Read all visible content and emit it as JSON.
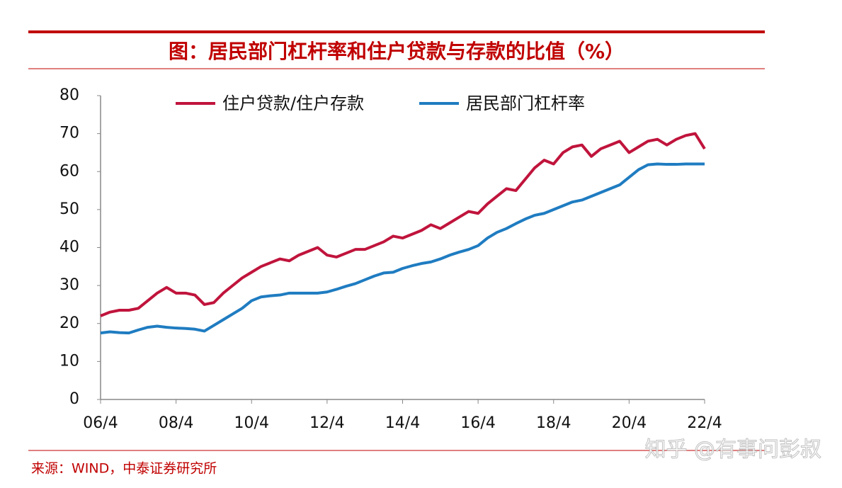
{
  "chart_data": {
    "type": "line",
    "title": "图：居民部门杠杆率和住户贷款与存款的比值（%）",
    "source": "来源：WIND，中泰证券研究所",
    "x": [
      2006.25,
      2006.5,
      2006.75,
      2007,
      2007.25,
      2007.5,
      2007.75,
      2008,
      2008.25,
      2008.5,
      2008.75,
      2009,
      2009.25,
      2009.5,
      2009.75,
      2010,
      2010.25,
      2010.5,
      2010.75,
      2011,
      2011.25,
      2011.5,
      2011.75,
      2012,
      2012.25,
      2012.5,
      2012.75,
      2013,
      2013.25,
      2013.5,
      2013.75,
      2014,
      2014.25,
      2014.5,
      2014.75,
      2015,
      2015.25,
      2015.5,
      2015.75,
      2016,
      2016.25,
      2016.5,
      2016.75,
      2017,
      2017.25,
      2017.5,
      2017.75,
      2018,
      2018.25,
      2018.5,
      2018.75,
      2019,
      2019.25,
      2019.5,
      2019.75,
      2020,
      2020.25,
      2020.5,
      2020.75,
      2021,
      2021.25,
      2021.5,
      2021.75,
      2022,
      2022.25
    ],
    "series": [
      {
        "name": "住户贷款/住户存款",
        "color": "#c0143c",
        "values": [
          22,
          23,
          23.5,
          23.5,
          24,
          26,
          28,
          29.5,
          28,
          28,
          27.5,
          25,
          25.5,
          28,
          30,
          32,
          33.5,
          35,
          36,
          37,
          36.5,
          38,
          39,
          40,
          38,
          37.5,
          38.5,
          39.5,
          39.5,
          40.5,
          41.5,
          43,
          42.5,
          43.5,
          44.5,
          46,
          45,
          46.5,
          48,
          49.5,
          49,
          51.5,
          53.5,
          55.5,
          55,
          58,
          61,
          63,
          62,
          65,
          66.5,
          67,
          64,
          66,
          67,
          68,
          65,
          66.5,
          68,
          68.5,
          67,
          68.5,
          69.5,
          70,
          66
        ]
      },
      {
        "name": "居民部门杠杆率",
        "color": "#1f7cc1",
        "values": [
          17.5,
          17.8,
          17.6,
          17.5,
          18.3,
          19,
          19.3,
          19,
          18.8,
          18.7,
          18.5,
          18,
          19.5,
          21,
          22.5,
          24,
          26,
          27,
          27.3,
          27.5,
          28,
          28,
          28,
          28,
          28.3,
          29,
          29.8,
          30.5,
          31.5,
          32.5,
          33.3,
          33.5,
          34.5,
          35.2,
          35.8,
          36.2,
          37,
          38,
          38.8,
          39.5,
          40.5,
          42.5,
          44,
          45,
          46.3,
          47.5,
          48.5,
          49,
          50,
          51,
          52,
          52.5,
          53.5,
          54.5,
          55.5,
          56.5,
          58.5,
          60.5,
          61.8,
          62,
          61.9,
          61.9,
          62,
          62,
          62
        ]
      }
    ],
    "xlim": [
      2006.25,
      2022.25
    ],
    "xticks": [
      {
        "value": 2006.25,
        "label": "06/4"
      },
      {
        "value": 2008.25,
        "label": "08/4"
      },
      {
        "value": 2010.25,
        "label": "10/4"
      },
      {
        "value": 2012.25,
        "label": "12/4"
      },
      {
        "value": 2014.25,
        "label": "14/4"
      },
      {
        "value": 2016.25,
        "label": "16/4"
      },
      {
        "value": 2018.25,
        "label": "18/4"
      },
      {
        "value": 2020.25,
        "label": "20/4"
      },
      {
        "value": 2022.25,
        "label": "22/4"
      }
    ],
    "ylim": [
      0,
      80
    ],
    "yticks": [
      0,
      10,
      20,
      30,
      40,
      50,
      60,
      70,
      80
    ],
    "grid": false
  },
  "watermark": "知乎 @有事问彭叔"
}
